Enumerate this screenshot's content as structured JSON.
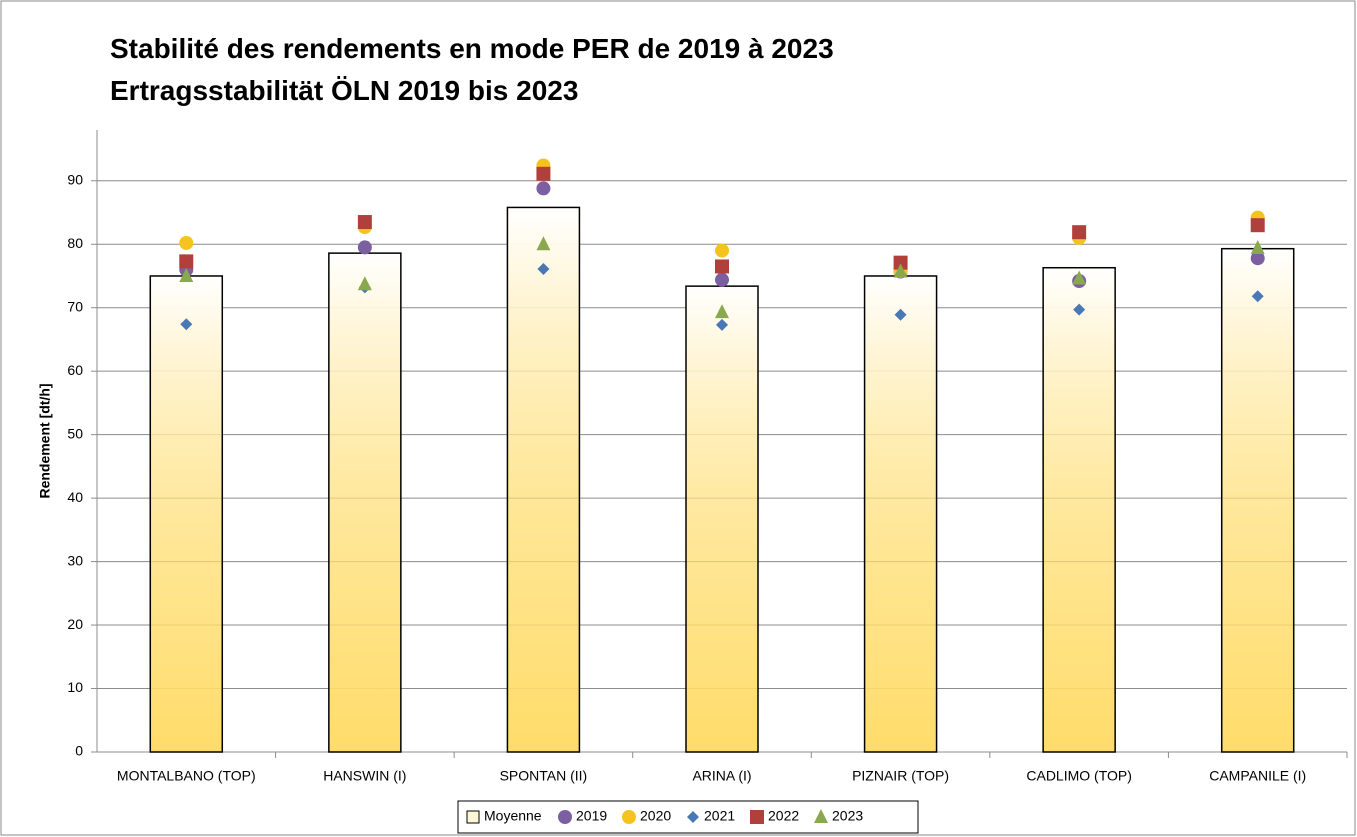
{
  "chart_data": {
    "type": "bar",
    "title": "Stabilité des rendements en mode PER de 2019 à 2023",
    "subtitle": "Ertragsstabilität ÖLN 2019 bis 2023",
    "y_label": "Rendement [dt/h]",
    "categories": [
      "MONTALBANO (TOP)",
      "HANSWIN (I)",
      "SPONTAN (II)",
      "ARINA (I)",
      "PIZNAIR (TOP)",
      "CADLIMO (TOP)",
      "CAMPANILE (I)"
    ],
    "series": [
      {
        "name": "Moyenne",
        "marker": "bar",
        "color": "#ffdc6a",
        "values": [
          75,
          78.6,
          85.8,
          73.4,
          75,
          76.3,
          79.3
        ]
      },
      {
        "name": "2019",
        "marker": "circle",
        "color": "#7b5fa0",
        "values": [
          76,
          79.5,
          88.8,
          74.4,
          75.7,
          74.2,
          77.8
        ]
      },
      {
        "name": "2020",
        "marker": "circle",
        "color": "#f4c31e",
        "values": [
          80.2,
          82.7,
          92.4,
          79,
          75.8,
          81,
          84.2
        ]
      },
      {
        "name": "2021",
        "marker": "diamond",
        "color": "#4a78b4",
        "values": [
          67.4,
          73.2,
          76.1,
          67.3,
          68.9,
          69.7,
          71.8
        ]
      },
      {
        "name": "2022",
        "marker": "square",
        "color": "#b1403d",
        "values": [
          77.3,
          83.5,
          91.1,
          76.5,
          77.1,
          81.9,
          83
        ]
      },
      {
        "name": "2023",
        "marker": "triangle",
        "color": "#8aa94f",
        "values": [
          75,
          73.7,
          80,
          69.3,
          75.7,
          74.6,
          79.4
        ]
      }
    ],
    "ylim": [
      0,
      98
    ],
    "yticks": [
      0,
      10,
      20,
      30,
      40,
      50,
      60,
      70,
      80,
      90
    ],
    "grid": true,
    "legend": "bottom"
  }
}
